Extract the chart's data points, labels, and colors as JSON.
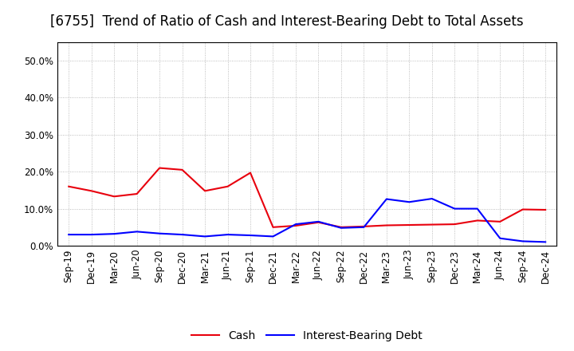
{
  "title": "[6755]  Trend of Ratio of Cash and Interest-Bearing Debt to Total Assets",
  "x_labels": [
    "Sep-19",
    "Dec-19",
    "Mar-20",
    "Jun-20",
    "Sep-20",
    "Dec-20",
    "Mar-21",
    "Jun-21",
    "Sep-21",
    "Dec-21",
    "Mar-22",
    "Jun-22",
    "Sep-22",
    "Dec-22",
    "Mar-23",
    "Jun-23",
    "Sep-23",
    "Dec-23",
    "Mar-24",
    "Jun-24",
    "Sep-24",
    "Dec-24"
  ],
  "cash": [
    0.16,
    0.148,
    0.133,
    0.14,
    0.21,
    0.205,
    0.148,
    0.16,
    0.197,
    0.05,
    0.054,
    0.063,
    0.05,
    0.052,
    0.055,
    0.056,
    0.057,
    0.058,
    0.068,
    0.065,
    0.098,
    0.097
  ],
  "ibd": [
    0.03,
    0.03,
    0.032,
    0.038,
    0.033,
    0.03,
    0.025,
    0.03,
    0.028,
    0.025,
    0.058,
    0.065,
    0.048,
    0.05,
    0.126,
    0.118,
    0.127,
    0.1,
    0.1,
    0.02,
    0.012,
    0.01
  ],
  "cash_color": "#e8000d",
  "ibd_color": "#0000ff",
  "background_color": "#ffffff",
  "grid_color": "#888888",
  "ylim": [
    0.0,
    0.55
  ],
  "yticks": [
    0.0,
    0.1,
    0.2,
    0.3,
    0.4,
    0.5
  ],
  "legend_labels": [
    "Cash",
    "Interest-Bearing Debt"
  ],
  "title_fontsize": 12,
  "axis_fontsize": 8.5,
  "legend_fontsize": 10
}
